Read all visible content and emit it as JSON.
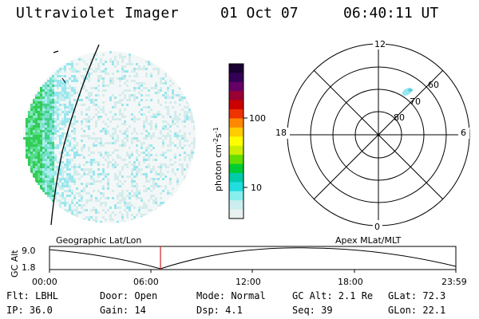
{
  "header": {
    "title": "Ultraviolet Imager",
    "date": "01 Oct 07",
    "time": "06:40:11 UT"
  },
  "colorbar": {
    "label": "photon cm",
    "label_sup1": "-2",
    "label_s": "s",
    "label_sup2": "-1",
    "ticks": [
      "100",
      "10"
    ],
    "colors": [
      "#1a0033",
      "#330055",
      "#660066",
      "#990033",
      "#cc0000",
      "#ee3300",
      "#ff8800",
      "#ffcc00",
      "#ffff00",
      "#ccee00",
      "#66dd00",
      "#00cc33",
      "#00ccaa",
      "#22dddd",
      "#88eeee",
      "#cceeee",
      "#e8f0f0"
    ]
  },
  "polar": {
    "mlt_labels": {
      "top": "12",
      "left": "18",
      "right": "6",
      "bottom": "0"
    },
    "lat_labels": [
      "60",
      "70",
      "80"
    ]
  },
  "timeline": {
    "ylabel": "GC Alt",
    "yticks": [
      "9.0",
      "1.8"
    ],
    "left_title": "Geographic Lat/Lon",
    "right_title": "Apex  MLat/MLT",
    "xticks": [
      "00:00",
      "06:00",
      "12:00",
      "18:00",
      "23:59"
    ]
  },
  "info": {
    "filter": "Flt: LBHL",
    "ip": "IP: 36.0",
    "door": "Door: Open",
    "gain": "Gain: 14",
    "mode": "Mode: Normal",
    "dsp": "Dsp:    4.1",
    "gcalt": "GC Alt: 2.1 Re",
    "seq": "Seq: 39",
    "glat": "GLat:  72.3",
    "glon": "GLon:  22.1"
  },
  "colors": {
    "marker": "#cc2222",
    "green": "#33cc55",
    "cyan": "#99e6ee"
  }
}
